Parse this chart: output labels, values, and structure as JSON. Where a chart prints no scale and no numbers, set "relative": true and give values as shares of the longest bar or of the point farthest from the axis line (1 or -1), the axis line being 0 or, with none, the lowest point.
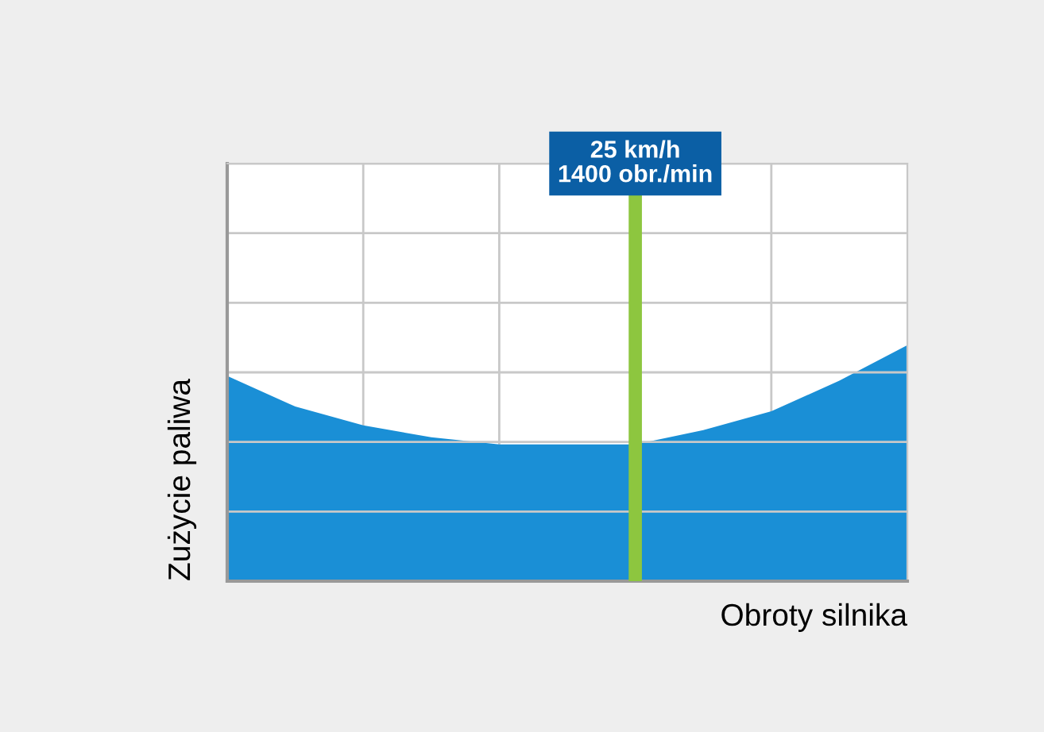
{
  "chart_data": {
    "type": "area",
    "relative": true,
    "xlabel": "Obroty silnika",
    "ylabel": "Zużycie paliwa",
    "categories": [
      null,
      null,
      null,
      null,
      null,
      null,
      null,
      null,
      null,
      null,
      null
    ],
    "series": [
      {
        "color": "#1a8fd6",
        "values": [
          0.87,
          0.74,
          0.66,
          0.61,
          0.58,
          0.58,
          0.58,
          0.64,
          0.72,
          0.85,
          1.0
        ]
      }
    ],
    "annotations": [
      "25 km/h\n1400 obr./min"
    ],
    "grid": true
  }
}
